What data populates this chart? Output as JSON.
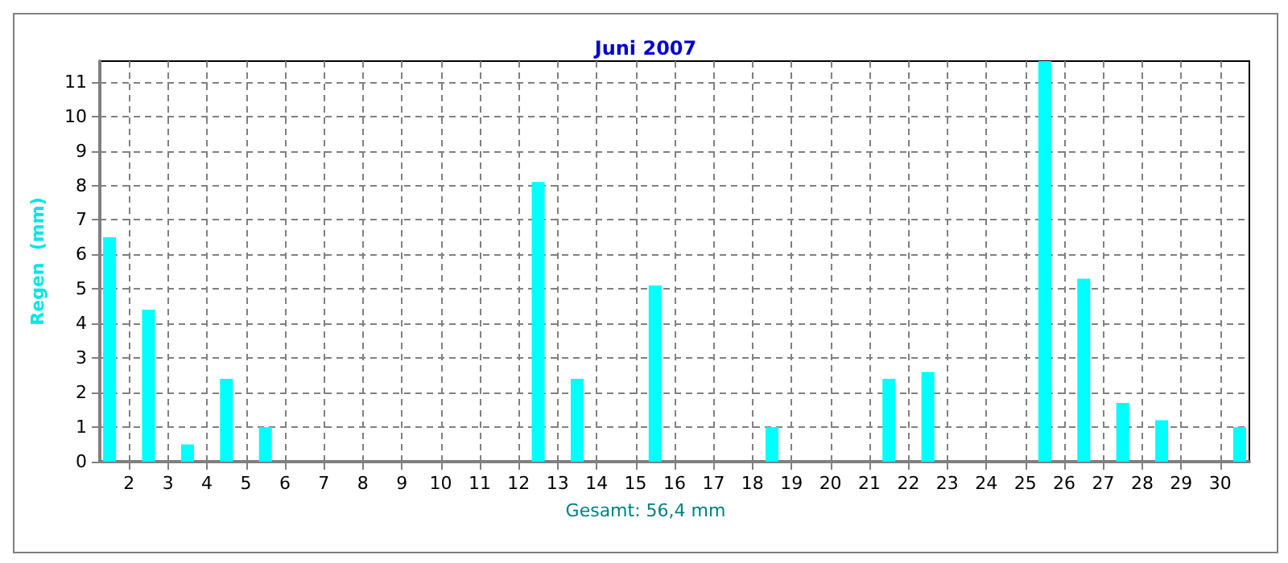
{
  "chart_data": {
    "type": "bar",
    "title": "Juni 2007",
    "ylabel": "Regen  (mm)",
    "annotations": [
      "Gesamt: 56,4 mm"
    ],
    "x": [
      1.5,
      2.5,
      3.5,
      4.5,
      5.5,
      6.5,
      7.5,
      8.5,
      9.5,
      10.5,
      11.5,
      12.5,
      13.5,
      14.5,
      15.5,
      16.5,
      17.5,
      18.5,
      19.5,
      20.5,
      21.5,
      22.5,
      23.5,
      24.5,
      25.5,
      26.5,
      27.5,
      28.5,
      29.5,
      30.5
    ],
    "values": [
      6.5,
      4.4,
      0.5,
      2.4,
      1.0,
      0,
      0,
      0,
      0,
      0,
      0,
      8.1,
      2.4,
      0,
      5.1,
      0,
      0,
      1.0,
      0,
      0,
      2.4,
      2.6,
      0,
      0,
      11.6,
      5.3,
      1.7,
      1.2,
      0,
      1.0
    ],
    "color": "#00ffff",
    "xlim": [
      1.25,
      30.75
    ],
    "xticks": [
      2,
      3,
      4,
      5,
      6,
      7,
      8,
      9,
      10,
      11,
      12,
      13,
      14,
      15,
      16,
      17,
      18,
      19,
      20,
      21,
      22,
      23,
      24,
      25,
      26,
      27,
      28,
      29,
      30
    ],
    "ylim": [
      0,
      11.6
    ],
    "yticks": [
      0,
      1,
      2,
      3,
      4,
      5,
      6,
      7,
      8,
      9,
      10,
      11
    ],
    "grid": true
  }
}
